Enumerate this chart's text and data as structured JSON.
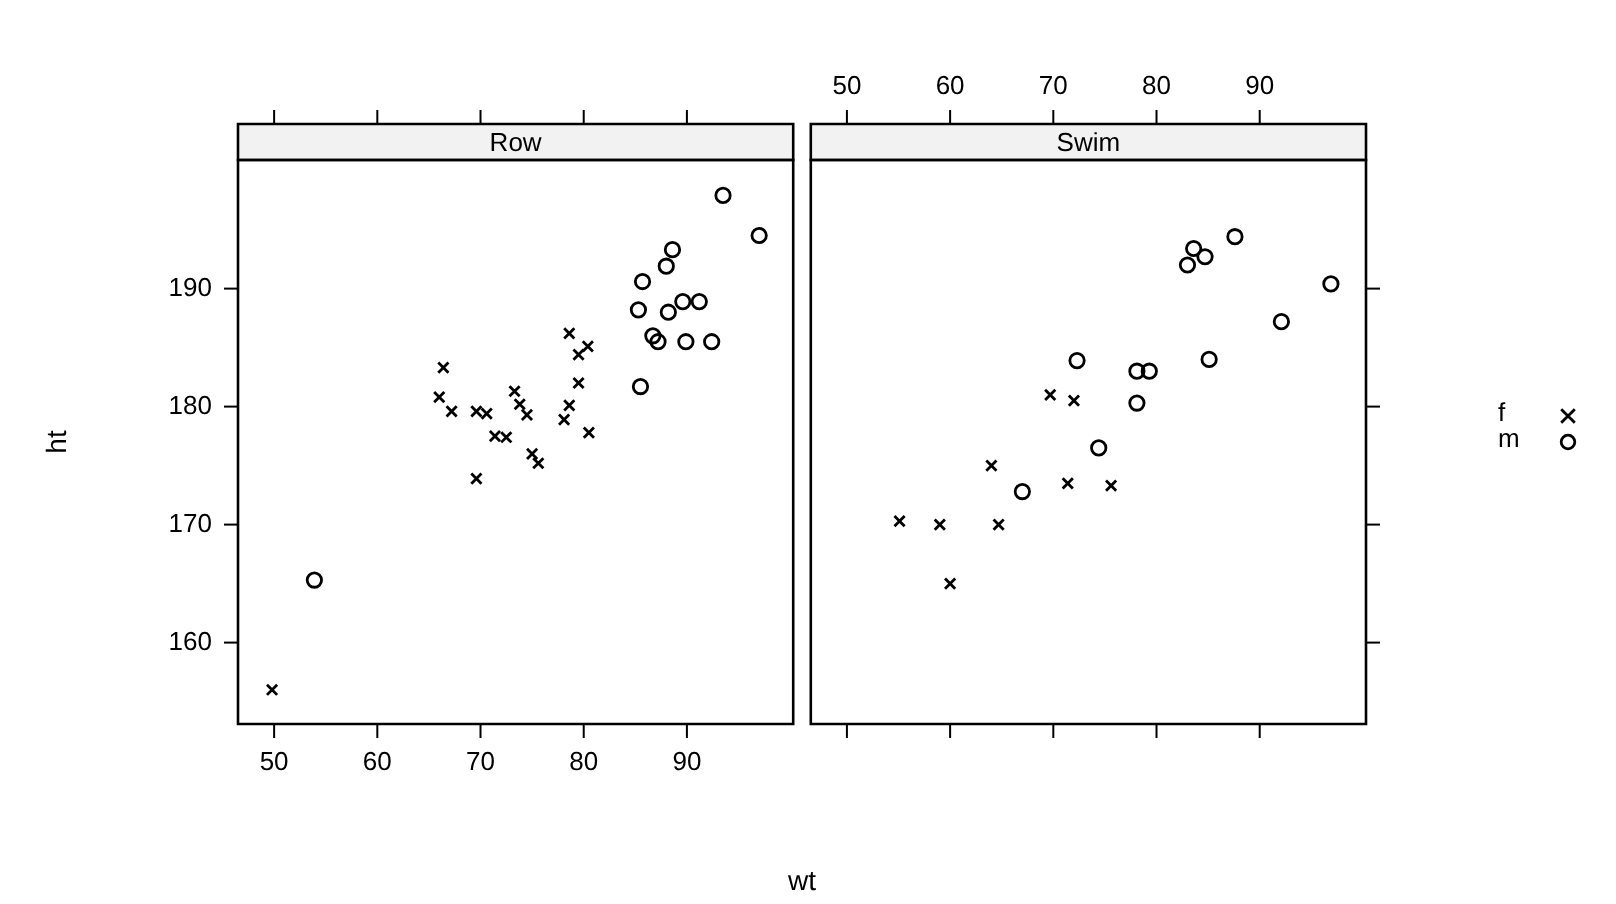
{
  "chart_data": [
    {
      "type": "scatter",
      "title": "Row",
      "xlabel": "wt",
      "ylabel": "ht",
      "xlim": [
        46.5,
        100.3
      ],
      "xticks": [
        50,
        60,
        70,
        80,
        90
      ],
      "ylim": [
        153.1,
        200.9
      ],
      "yticks": [
        160,
        170,
        180,
        190
      ],
      "series": [
        {
          "color": "#000000",
          "marker": "cross",
          "x": [
            49.8,
            66.4,
            66.0,
            67.2,
            69.6,
            70.6,
            69.6,
            71.4,
            72.5,
            73.3,
            73.8,
            74.5,
            75.0,
            75.6,
            78.6,
            79.5,
            80.4,
            79.5,
            78.6,
            78.1,
            80.5
          ],
          "values": [
            156.0,
            183.3,
            180.8,
            179.6,
            179.6,
            179.4,
            173.9,
            177.5,
            177.4,
            181.3,
            180.2,
            179.3,
            176.0,
            175.2,
            186.2,
            184.4,
            185.1,
            182.0,
            180.1,
            178.9,
            177.8
          ]
        },
        {
          "color": "#000000",
          "marker": "circle",
          "x": [
            53.9,
            85.3,
            85.7,
            85.5,
            86.7,
            87.2,
            88.0,
            88.6,
            88.2,
            89.6,
            91.2,
            89.9,
            92.4,
            93.5,
            97.0
          ],
          "values": [
            165.3,
            188.2,
            190.6,
            181.7,
            186.0,
            185.5,
            191.9,
            193.3,
            188.0,
            188.9,
            188.9,
            185.5,
            185.5,
            197.9,
            194.5
          ]
        }
      ]
    },
    {
      "type": "scatter",
      "title": "Swim",
      "xlim": [
        46.5,
        100.3
      ],
      "xticks": [
        50,
        60,
        70,
        80,
        90
      ],
      "ylim": [
        153.1,
        200.9
      ],
      "yticks": [
        160,
        170,
        180,
        190
      ],
      "tick_labels": "x",
      "legend": "right",
      "series": [
        {
          "name": "f",
          "color": "#000000",
          "marker": "cross",
          "x": [
            55.1,
            59.0,
            60.0,
            64.0,
            64.7,
            69.7,
            72.0,
            71.4,
            75.6
          ],
          "values": [
            170.3,
            170.0,
            165.0,
            175.0,
            170.0,
            181.0,
            180.5,
            173.5,
            173.3
          ]
        },
        {
          "name": "m",
          "color": "#000000",
          "marker": "circle",
          "x": [
            67.0,
            72.3,
            74.4,
            78.1,
            78.1,
            79.3,
            83.0,
            83.6,
            84.7,
            85.1,
            87.6,
            92.1,
            96.9
          ],
          "values": [
            172.8,
            183.9,
            176.5,
            180.3,
            183.0,
            183.0,
            192.0,
            193.4,
            192.7,
            184.0,
            194.4,
            187.2,
            190.4
          ]
        }
      ]
    }
  ]
}
